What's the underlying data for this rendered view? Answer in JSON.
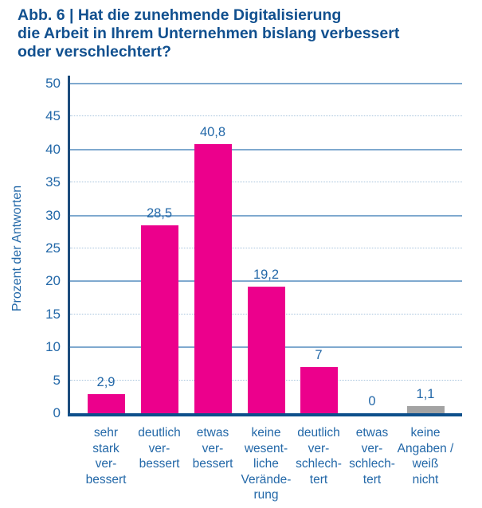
{
  "title": {
    "lines": [
      "Abb. 6 | Hat die zunehmende Digitalisierung",
      "die Arbeit in Ihrem Unternehmen bislang verbessert",
      "oder verschlechtert?"
    ]
  },
  "chart_data": {
    "type": "bar",
    "title": "Abb. 6 | Hat die zunehmende Digitalisierung die Arbeit in Ihrem Unternehmen bislang verbessert oder verschlechtert?",
    "xlabel": "",
    "ylabel": "Prozent der Antworten",
    "ylim": [
      0,
      50
    ],
    "ytick_step": 5,
    "grid": "horizontal; solid lines at multiples of 10 and 50, dotted lines at 5/15/25/35/45",
    "legend": "none",
    "categories": [
      "sehr stark verbessert",
      "deutlich verbessert",
      "etwas verbessert",
      "keine wesentliche Veränderung",
      "deutlich verschlechtert",
      "etwas verschlechtert",
      "keine Angaben / weiß nicht"
    ],
    "categories_display": [
      "sehr\nstark\nver-\nbessert",
      "deutlich\nver-\nbessert",
      "etwas\nver-\nbessert",
      "keine\nwesent-\nliche\nVerände-\nrung",
      "deutlich\nver-\nschlech-\ntert",
      "etwas\nver-\nschlech-\ntert",
      "keine\nAngaben /\nweiß\nnicht"
    ],
    "values": [
      2.9,
      28.5,
      40.8,
      19.2,
      7,
      0,
      1.1
    ],
    "value_labels": [
      "2,9",
      "28,5",
      "40,8",
      "19,2",
      "7",
      "0",
      "1,1"
    ],
    "bar_colors": [
      "#ec008c",
      "#ec008c",
      "#ec008c",
      "#ec008c",
      "#ec008c",
      "#ec008c",
      "#a3a3a3"
    ]
  },
  "colors": {
    "title_text": "#11508f",
    "label_text": "#2368a8",
    "bar_primary": "#ec008c",
    "bar_muted": "#a3a3a3",
    "grid_solid": "#7fa9cf",
    "grid_dotted": "#a7c4dd",
    "axis_y": "#1c4c7c",
    "axis_x": "#0d4f8b"
  }
}
